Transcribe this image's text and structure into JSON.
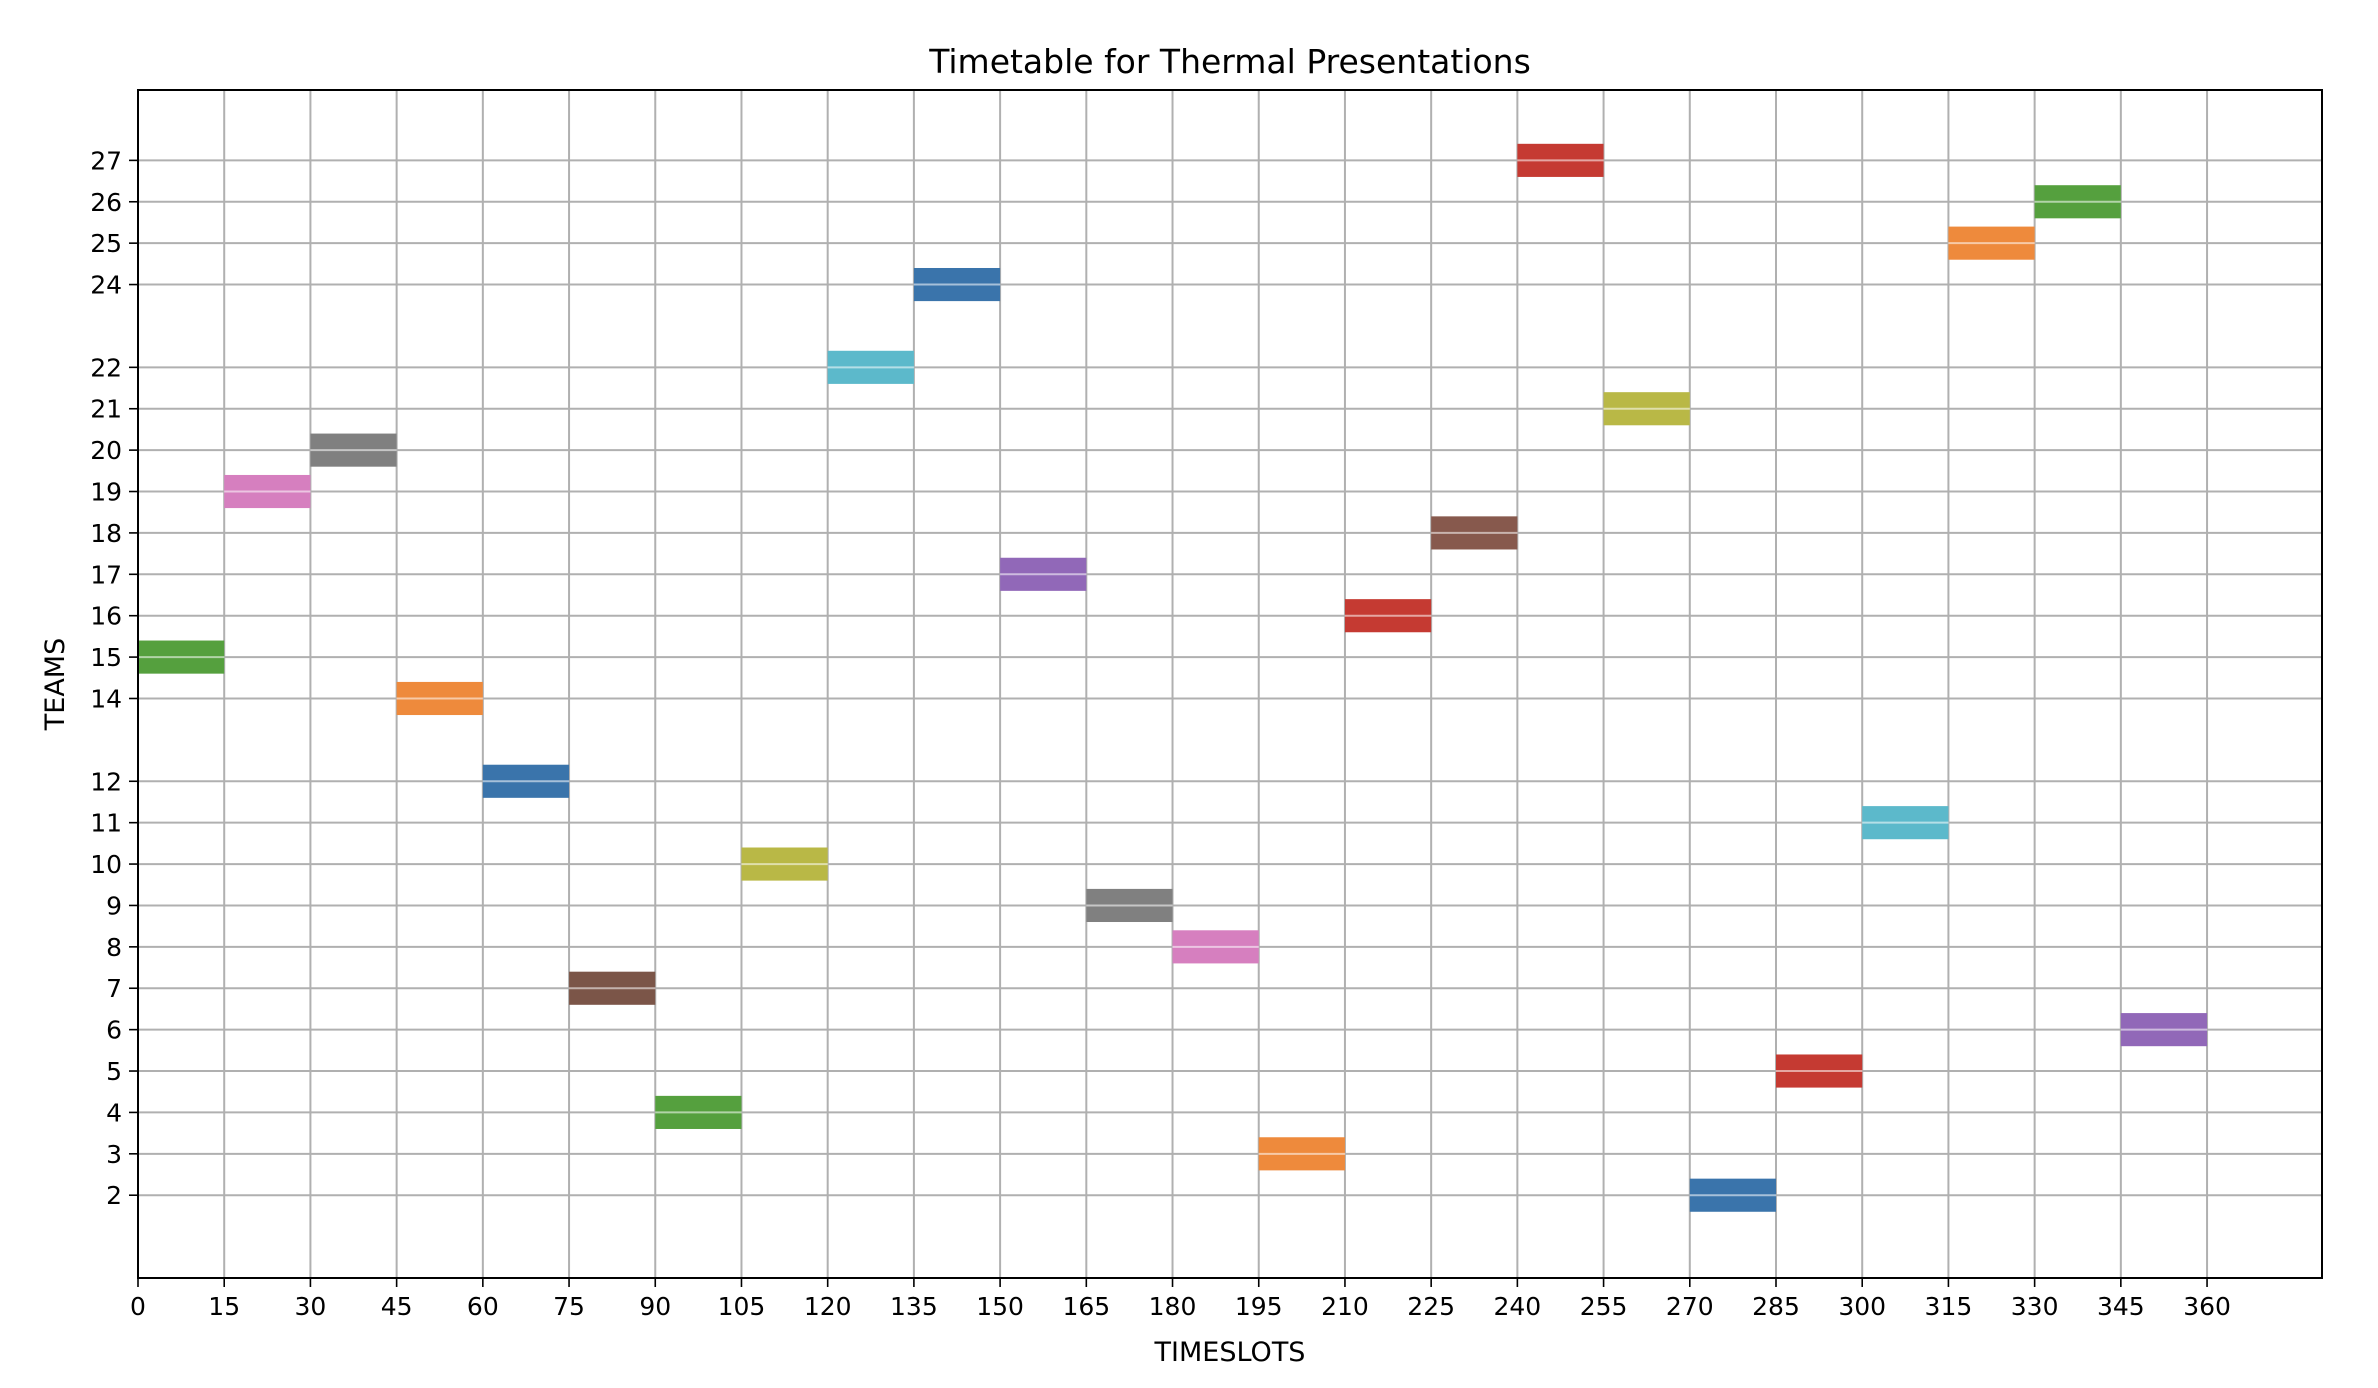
{
  "chart_data": {
    "type": "gantt",
    "title": "Timetable for Thermal Presentations",
    "xlabel": "TIMESLOTS",
    "ylabel": "TEAMS",
    "xlim": [
      0,
      380
    ],
    "ylim": [
      0,
      28.7
    ],
    "x_ticks": [
      0,
      15,
      30,
      45,
      60,
      75,
      90,
      105,
      120,
      135,
      150,
      165,
      180,
      195,
      210,
      225,
      240,
      255,
      270,
      285,
      300,
      315,
      330,
      345,
      360
    ],
    "y_ticks": [
      2,
      3,
      4,
      5,
      6,
      7,
      8,
      9,
      10,
      11,
      12,
      14,
      15,
      16,
      17,
      18,
      19,
      20,
      21,
      22,
      24,
      25,
      26,
      27
    ],
    "grid": true,
    "bar_height": 0.8,
    "bars": [
      {
        "team": 15,
        "start": 0,
        "duration": 15,
        "color": "#55a03e"
      },
      {
        "team": 19,
        "start": 15,
        "duration": 15,
        "color": "#d67fbf"
      },
      {
        "team": 20,
        "start": 30,
        "duration": 15,
        "color": "#808080"
      },
      {
        "team": 14,
        "start": 45,
        "duration": 15,
        "color": "#ee8a3c"
      },
      {
        "team": 12,
        "start": 60,
        "duration": 15,
        "color": "#3a74ab"
      },
      {
        "team": 7,
        "start": 75,
        "duration": 15,
        "color": "#7b5548"
      },
      {
        "team": 4,
        "start": 90,
        "duration": 15,
        "color": "#55a03e"
      },
      {
        "team": 10,
        "start": 105,
        "duration": 15,
        "color": "#b9b846"
      },
      {
        "team": 22,
        "start": 120,
        "duration": 15,
        "color": "#5cb9cb"
      },
      {
        "team": 24,
        "start": 135,
        "duration": 15,
        "color": "#3a74ab"
      },
      {
        "team": 17,
        "start": 150,
        "duration": 15,
        "color": "#9168b8"
      },
      {
        "team": 9,
        "start": 165,
        "duration": 15,
        "color": "#808080"
      },
      {
        "team": 8,
        "start": 180,
        "duration": 15,
        "color": "#d67fbf"
      },
      {
        "team": 3,
        "start": 195,
        "duration": 15,
        "color": "#ee8a3c"
      },
      {
        "team": 16,
        "start": 210,
        "duration": 15,
        "color": "#c53a32"
      },
      {
        "team": 18,
        "start": 225,
        "duration": 15,
        "color": "#87594d"
      },
      {
        "team": 27,
        "start": 240,
        "duration": 15,
        "color": "#c53a32"
      },
      {
        "team": 21,
        "start": 255,
        "duration": 15,
        "color": "#b9b846"
      },
      {
        "team": 2,
        "start": 270,
        "duration": 15,
        "color": "#3a74ab"
      },
      {
        "team": 5,
        "start": 285,
        "duration": 15,
        "color": "#c53a32"
      },
      {
        "team": 11,
        "start": 300,
        "duration": 15,
        "color": "#5cb9cb"
      },
      {
        "team": 25,
        "start": 315,
        "duration": 15,
        "color": "#ee8a3c"
      },
      {
        "team": 26,
        "start": 330,
        "duration": 15,
        "color": "#55a03e"
      },
      {
        "team": 6,
        "start": 345,
        "duration": 15,
        "color": "#9168b8"
      }
    ]
  }
}
